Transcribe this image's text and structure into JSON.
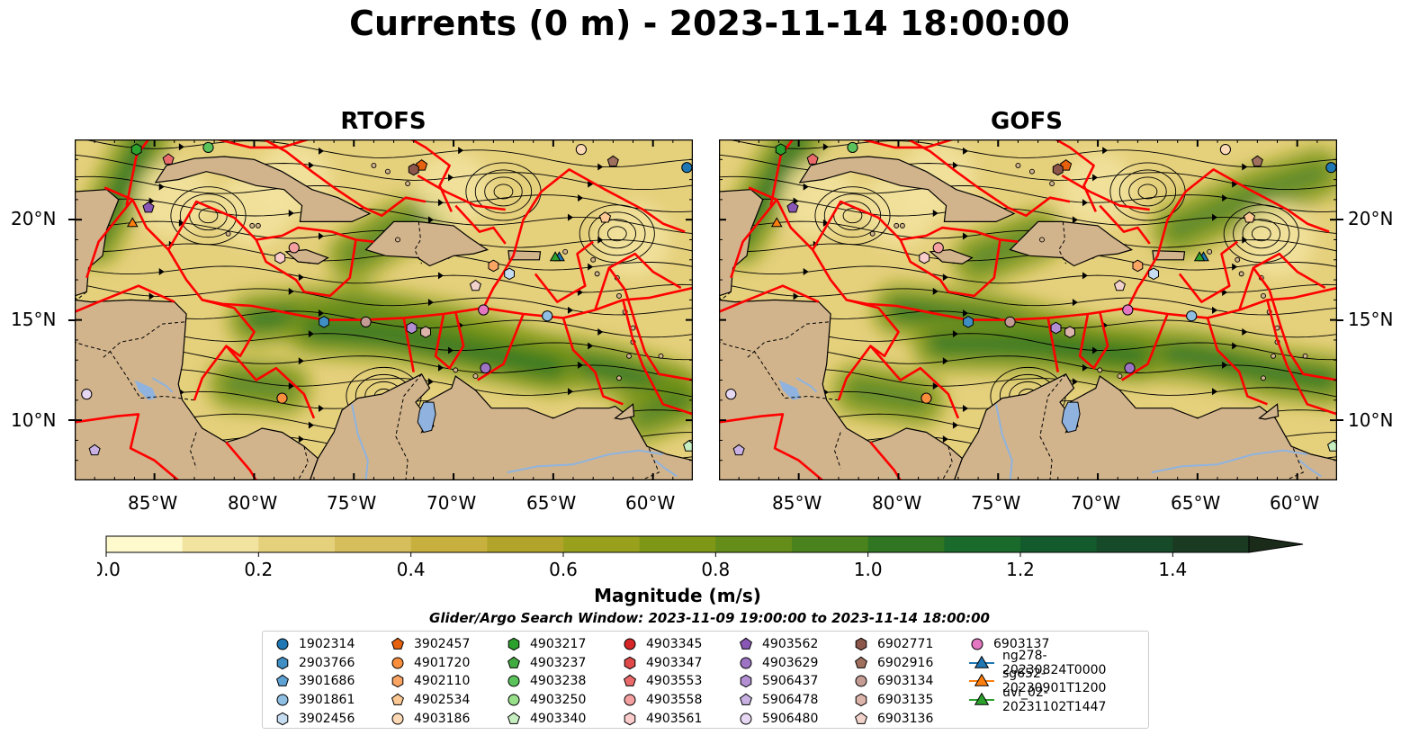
{
  "title": "Currents (0 m) - 2023-11-14 18:00:00",
  "panels": [
    {
      "id": "rtofs",
      "title": "RTOFS"
    },
    {
      "id": "gofs",
      "title": "GOFS"
    }
  ],
  "map": {
    "lon_range": [
      -89,
      -58
    ],
    "lat_range": [
      7,
      24
    ],
    "lon_ticks": [
      "85°W",
      "80°W",
      "75°W",
      "70°W",
      "65°W",
      "60°W"
    ],
    "lat_ticks": [
      "20°N",
      "15°N",
      "10°N"
    ],
    "land_color": "#d2b48c",
    "eez_color": "#ff0000",
    "streamline_color": "#000000",
    "water_color": "#8fb3de"
  },
  "colorbar": {
    "label": "Magnitude (m/s)",
    "range": [
      0,
      1.5
    ],
    "extend": "max",
    "ticks": [
      "0.0",
      "0.2",
      "0.4",
      "0.6",
      "0.8",
      "1.0",
      "1.2",
      "1.4"
    ],
    "colors": [
      "#fffacd",
      "#f2e4a0",
      "#e5d07c",
      "#d7be5c",
      "#c8b03f",
      "#b2a42a",
      "#98a01c",
      "#7f9716",
      "#648e19",
      "#4a821d",
      "#2f7522",
      "#1a6a2b",
      "#135a2c",
      "#164a28",
      "#1a3a22",
      "#1b2b1a"
    ]
  },
  "search_window": "Glider/Argo Search Window: 2023-11-09 19:00:00 to 2023-11-14 18:00:00",
  "legend": [
    {
      "label": "1902314",
      "marker": "circle",
      "color": "#1f77b4"
    },
    {
      "label": "2903766",
      "marker": "hexagon",
      "color": "#3f8fc4"
    },
    {
      "label": "3901686",
      "marker": "pentagon",
      "color": "#5ea2d4"
    },
    {
      "label": "3901861",
      "marker": "circle",
      "color": "#8ebee2"
    },
    {
      "label": "3902456",
      "marker": "hexagon",
      "color": "#c6dcf0"
    },
    {
      "label": "3902457",
      "marker": "pentagon",
      "color": "#e6610d"
    },
    {
      "label": "4901720",
      "marker": "circle",
      "color": "#f98e3d"
    },
    {
      "label": "4902110",
      "marker": "hexagon",
      "color": "#fba564"
    },
    {
      "label": "4902534",
      "marker": "pentagon",
      "color": "#fdc894"
    },
    {
      "label": "4903186",
      "marker": "circle",
      "color": "#fdd9b6"
    },
    {
      "label": "4903217",
      "marker": "hexagon",
      "color": "#2ca02c"
    },
    {
      "label": "4903237",
      "marker": "pentagon",
      "color": "#41ab41"
    },
    {
      "label": "4903238",
      "marker": "circle",
      "color": "#5bc35b"
    },
    {
      "label": "4903250",
      "marker": "circle",
      "color": "#98df8a"
    },
    {
      "label": "4903340",
      "marker": "pentagon",
      "color": "#c7eec0"
    },
    {
      "label": "4903345",
      "marker": "circle",
      "color": "#d62728"
    },
    {
      "label": "4903347",
      "marker": "hexagon",
      "color": "#e0494a"
    },
    {
      "label": "4903553",
      "marker": "pentagon",
      "color": "#ea6a6b"
    },
    {
      "label": "4903558",
      "marker": "circle",
      "color": "#f5a0a0"
    },
    {
      "label": "4903561",
      "marker": "hexagon",
      "color": "#fbcccc"
    },
    {
      "label": "4903562",
      "marker": "pentagon",
      "color": "#8856b4"
    },
    {
      "label": "4903629",
      "marker": "circle",
      "color": "#9d73c4"
    },
    {
      "label": "5906437",
      "marker": "hexagon",
      "color": "#b28fd3"
    },
    {
      "label": "5906478",
      "marker": "pentagon",
      "color": "#c9b2e3"
    },
    {
      "label": "5906480",
      "marker": "circle",
      "color": "#e6d8f2"
    },
    {
      "label": "6902771",
      "marker": "hexagon",
      "color": "#8c564b"
    },
    {
      "label": "6902916",
      "marker": "pentagon",
      "color": "#a0705f"
    },
    {
      "label": "6903134",
      "marker": "circle",
      "color": "#c49c94"
    },
    {
      "label": "6903135",
      "marker": "hexagon",
      "color": "#dcb4aa"
    },
    {
      "label": "6903136",
      "marker": "pentagon",
      "color": "#f2d3cc"
    },
    {
      "label": "6903137",
      "marker": "circle",
      "color": "#e377c2"
    },
    {
      "label": "ng278-20230824T0000",
      "marker": "triangle-line",
      "color": "#1f77b4"
    },
    {
      "label": "sg652-20230901T1200",
      "marker": "triangle-line",
      "color": "#ff7f0e"
    },
    {
      "label": "uvi_02-20231102T1447",
      "marker": "triangle-line",
      "color": "#2ca02c"
    }
  ],
  "floats": [
    {
      "name": "1902314",
      "lon": -58.3,
      "lat": 22.6
    },
    {
      "name": "2903766",
      "lon": -76.5,
      "lat": 14.9
    },
    {
      "name": "3901861",
      "lon": -65.3,
      "lat": 15.2
    },
    {
      "name": "3902456",
      "lon": -67.2,
      "lat": 17.3
    },
    {
      "name": "3902457",
      "lon": -71.6,
      "lat": 22.7
    },
    {
      "name": "4901720",
      "lon": -78.6,
      "lat": 11.1
    },
    {
      "name": "4902110",
      "lon": -68.0,
      "lat": 17.7
    },
    {
      "name": "4902534",
      "lon": -62.4,
      "lat": 20.1
    },
    {
      "name": "4903186",
      "lon": -63.6,
      "lat": 23.5
    },
    {
      "name": "4903217",
      "lon": -85.9,
      "lat": 23.5
    },
    {
      "name": "4903238",
      "lon": -82.3,
      "lat": 23.6
    },
    {
      "name": "4903340",
      "lon": -58.2,
      "lat": 8.7
    },
    {
      "name": "4903553",
      "lon": -84.3,
      "lat": 23.0
    },
    {
      "name": "4903558",
      "lon": -78.0,
      "lat": 18.6
    },
    {
      "name": "4903561",
      "lon": -78.7,
      "lat": 18.1
    },
    {
      "name": "4903562",
      "lon": -85.3,
      "lat": 20.6
    },
    {
      "name": "4903629",
      "lon": -68.4,
      "lat": 12.6
    },
    {
      "name": "5906437",
      "lon": -72.1,
      "lat": 14.6
    },
    {
      "name": "5906478",
      "lon": -88.0,
      "lat": 8.5
    },
    {
      "name": "5906480",
      "lon": -88.4,
      "lat": 11.3
    },
    {
      "name": "6902771",
      "lon": -72.0,
      "lat": 22.5
    },
    {
      "name": "6902916",
      "lon": -62.0,
      "lat": 22.9
    },
    {
      "name": "6903134",
      "lon": -74.4,
      "lat": 14.9
    },
    {
      "name": "6903135",
      "lon": -71.4,
      "lat": 14.4
    },
    {
      "name": "6903136",
      "lon": -68.9,
      "lat": 16.7
    },
    {
      "name": "6903137",
      "lon": -68.5,
      "lat": 15.5
    },
    {
      "name": "ng278-20230824T0000",
      "lon": -64.7,
      "lat": 18.1
    },
    {
      "name": "sg652-20230901T1200",
      "lon": -86.1,
      "lat": 19.8
    },
    {
      "name": "uvi_02-20231102T1447",
      "lon": -64.9,
      "lat": 18.1
    }
  ]
}
